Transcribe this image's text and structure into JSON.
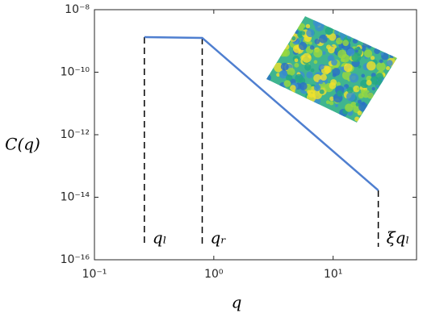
{
  "chart_data": {
    "type": "line",
    "x": [
      0.262,
      0.8,
      23.9
    ],
    "series": [
      {
        "color": "#4f7fd0",
        "values": [
          1.33e-09,
          1.25e-09,
          1.66e-14
        ]
      }
    ],
    "annotations": [
      "qₗ",
      "qᵣ",
      "ξqₗ"
    ],
    "x_label": "q",
    "y_label": "C(q)",
    "xlog": true,
    "ylog": true,
    "xlim": [
      0.1,
      50
    ],
    "ylim": [
      1e-16,
      1e-08
    ],
    "xticks": [
      {
        "value": 0.1,
        "label": "10⁻¹"
      },
      {
        "value": 1,
        "label": "10⁰"
      },
      {
        "value": 10,
        "label": "10¹"
      }
    ],
    "yticks": [
      {
        "value": 1e-16,
        "label": "10⁻¹⁶"
      },
      {
        "value": 1e-14,
        "label": "10⁻¹⁴"
      },
      {
        "value": 1e-12,
        "label": "10⁻¹²"
      },
      {
        "value": 1e-10,
        "label": "10⁻¹⁰"
      },
      {
        "value": 1e-08,
        "label": "10⁻⁸"
      }
    ]
  }
}
